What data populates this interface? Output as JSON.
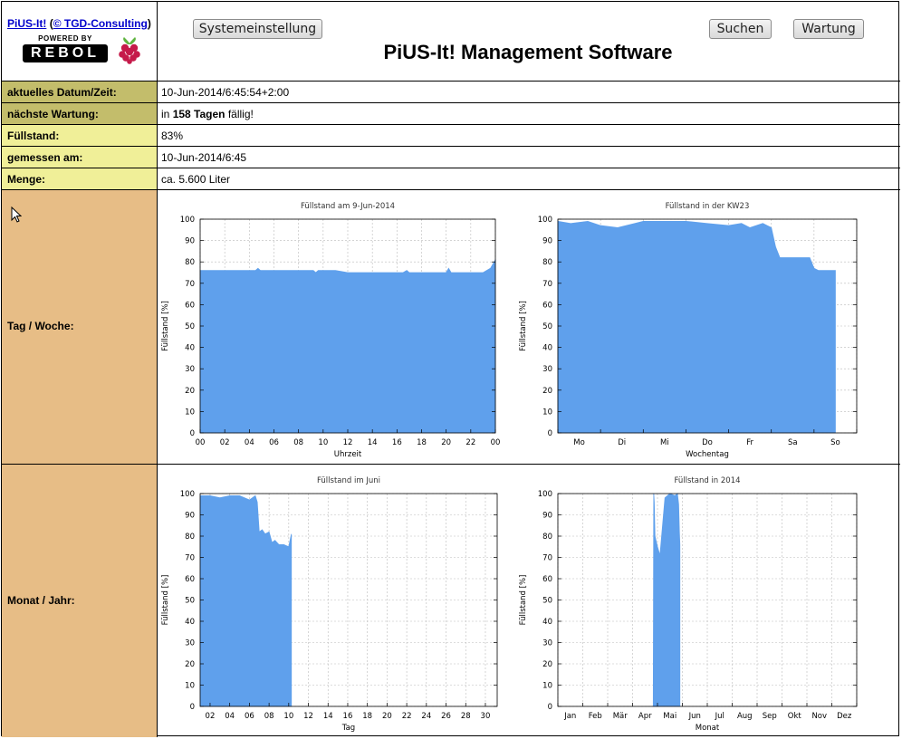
{
  "header": {
    "brand_link": "PiUS-It!",
    "copyright_prefix": "(",
    "copyright_link": "© TGD-Consulting",
    "copyright_suffix": ")",
    "logo_top": "POWERED BY",
    "logo_bottom": "REBOL",
    "title": "PiUS-It! Management Software",
    "buttons": {
      "settings": "Systemeinstellung",
      "search": "Suchen",
      "maintenance": "Wartung"
    }
  },
  "colors": {
    "olive": "#c3bd6b",
    "yellow": "#f0ef98",
    "tan": "#e7bd86",
    "fill": "#5fa0ec",
    "brand": "#0000cc"
  },
  "info_rows": [
    {
      "label": "aktuelles Datum/Zeit:",
      "value": "10-Jun-2014/6:45:54+2:00"
    },
    {
      "label": "nächste Wartung:",
      "value_pre": "in ",
      "value_bold": "158 Tagen",
      "value_post": " fällig!"
    },
    {
      "label": "Füllstand:",
      "value": "83%"
    },
    {
      "label": "gemessen am:",
      "value": "10-Jun-2014/6:45"
    },
    {
      "label": "Menge:",
      "value": "ca. 5.600 Liter"
    }
  ],
  "sections": {
    "day_week": "Tag / Woche:",
    "month_year": "Monat / Jahr:"
  },
  "chart_data": [
    {
      "type": "area",
      "title": "Füllstand am 9-Jun-2014",
      "xlabel": "Uhrzeit",
      "ylabel": "Füllstand [%]",
      "ylim": [
        0,
        100
      ],
      "yticks": [
        "0",
        "10",
        "20",
        "30",
        "40",
        "50",
        "60",
        "70",
        "80",
        "90",
        "100"
      ],
      "xticks": [
        "00",
        "02",
        "04",
        "06",
        "08",
        "10",
        "12",
        "14",
        "16",
        "18",
        "20",
        "22",
        "00"
      ],
      "x": [
        0,
        4.5,
        4.7,
        4.9,
        9.2,
        9.4,
        9.6,
        11,
        12,
        16.5,
        16.8,
        17,
        20,
        20.2,
        20.4,
        23,
        23.3,
        23.6,
        23.8,
        24
      ],
      "y": [
        76,
        76,
        77,
        76,
        76,
        75,
        76,
        76,
        75,
        75,
        76,
        75,
        75,
        77,
        75,
        75,
        76,
        77,
        79,
        81
      ],
      "grid": true
    },
    {
      "type": "area",
      "title": "Füllstand in der KW23",
      "xlabel": "Wochentag",
      "ylabel": "Füllstand [%]",
      "ylim": [
        0,
        100
      ],
      "yticks": [
        "0",
        "10",
        "20",
        "30",
        "40",
        "50",
        "60",
        "70",
        "80",
        "90",
        "100"
      ],
      "xticks": [
        "Mo",
        "Di",
        "Mi",
        "Do",
        "Fr",
        "Sa",
        "So"
      ],
      "x": [
        0,
        0.3,
        0.7,
        1.0,
        1.4,
        1.8,
        2.0,
        2.5,
        3.0,
        3.5,
        4.0,
        4.3,
        4.5,
        4.8,
        5.0,
        5.1,
        5.2,
        5.5,
        5.9,
        6.0,
        6.1,
        6.5
      ],
      "y": [
        99,
        98,
        99,
        97,
        96,
        98,
        99,
        99,
        99,
        98,
        97,
        98,
        96,
        98,
        96,
        87,
        82,
        82,
        82,
        77,
        76,
        76
      ],
      "grid": true
    },
    {
      "type": "area",
      "title": "Füllstand im Juni",
      "xlabel": "Tag",
      "ylabel": "Füllstand [%]",
      "ylim": [
        0,
        100
      ],
      "yticks": [
        "0",
        "10",
        "20",
        "30",
        "40",
        "50",
        "60",
        "70",
        "80",
        "90",
        "100"
      ],
      "xticks": [
        "02",
        "04",
        "06",
        "08",
        "10",
        "12",
        "14",
        "16",
        "18",
        "20",
        "22",
        "24",
        "26",
        "28",
        "30"
      ],
      "x": [
        1,
        2,
        3,
        4,
        5,
        6,
        6.6,
        6.8,
        7.0,
        7.3,
        7.6,
        8.0,
        8.3,
        8.6,
        9.0,
        9.5,
        10.0,
        10.27
      ],
      "y": [
        99,
        99,
        98,
        99,
        99,
        97,
        99,
        96,
        82,
        83,
        81,
        82,
        77,
        78,
        76,
        76,
        75,
        81
      ],
      "grid": true
    },
    {
      "type": "area",
      "title": "Füllstand in 2014",
      "xlabel": "Monat",
      "ylabel": "Füllstand [%]",
      "ylim": [
        0,
        100
      ],
      "yticks": [
        "0",
        "10",
        "20",
        "30",
        "40",
        "50",
        "60",
        "70",
        "80",
        "90",
        "100"
      ],
      "xticks": [
        "Jan",
        "Feb",
        "Mär",
        "Apr",
        "Mai",
        "Jun",
        "Jul",
        "Aug",
        "Sep",
        "Okt",
        "Nov",
        "Dez"
      ],
      "x": [
        3.83,
        3.85,
        3.87,
        3.9,
        4.0,
        4.1,
        4.3,
        4.5,
        4.7,
        4.8,
        4.85,
        4.88,
        4.9
      ],
      "y": [
        0,
        100,
        96,
        80,
        75,
        71,
        98,
        100,
        99,
        100,
        95,
        82,
        76
      ],
      "grid": true
    }
  ]
}
